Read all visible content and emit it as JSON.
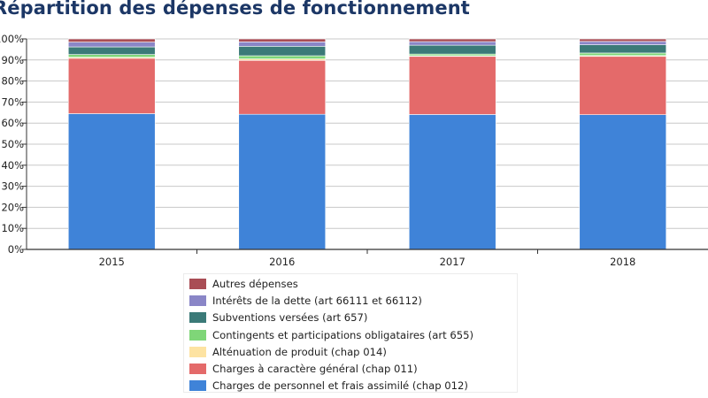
{
  "chart_data": {
    "type": "bar",
    "stacked": true,
    "title": "Répartition des dépenses de fonctionnement",
    "categories": [
      "2015",
      "2016",
      "2017",
      "2018"
    ],
    "ylim": [
      0,
      100
    ],
    "yticks": [
      "0%",
      "10%",
      "20%",
      "30%",
      "40%",
      "50%",
      "60%",
      "70%",
      "80%",
      "90%",
      "100%"
    ],
    "grid": true,
    "legend_position": "bottom",
    "series": [
      {
        "name": "Charges de personnel et frais assimilé (chap 012)",
        "color": "#3f83d8",
        "values": [
          64.5,
          64.2,
          64.1,
          64.0
        ]
      },
      {
        "name": "Charges à caractère général (chap 011)",
        "color": "#e46a6a",
        "values": [
          26.3,
          25.6,
          27.6,
          27.7
        ]
      },
      {
        "name": "Alténuation de produit (chap 014)",
        "color": "#fde3a2",
        "values": [
          0.5,
          0.7,
          0.3,
          0.4
        ]
      },
      {
        "name": "Contingents et participations obligataires (art 655)",
        "color": "#7fd678",
        "values": [
          1.3,
          1.5,
          0.8,
          1.2
        ]
      },
      {
        "name": "Subventions versées (art 657)",
        "color": "#3b7a78",
        "values": [
          3.6,
          4.5,
          4.2,
          3.9
        ]
      },
      {
        "name": "Intérêts de la dette (art 66111 et 66112)",
        "color": "#8a86c7",
        "values": [
          2.3,
          2.1,
          1.7,
          1.6
        ]
      },
      {
        "name": "Autres dépenses",
        "color": "#a94d55",
        "values": [
          1.5,
          1.4,
          1.3,
          1.2
        ]
      }
    ]
  }
}
